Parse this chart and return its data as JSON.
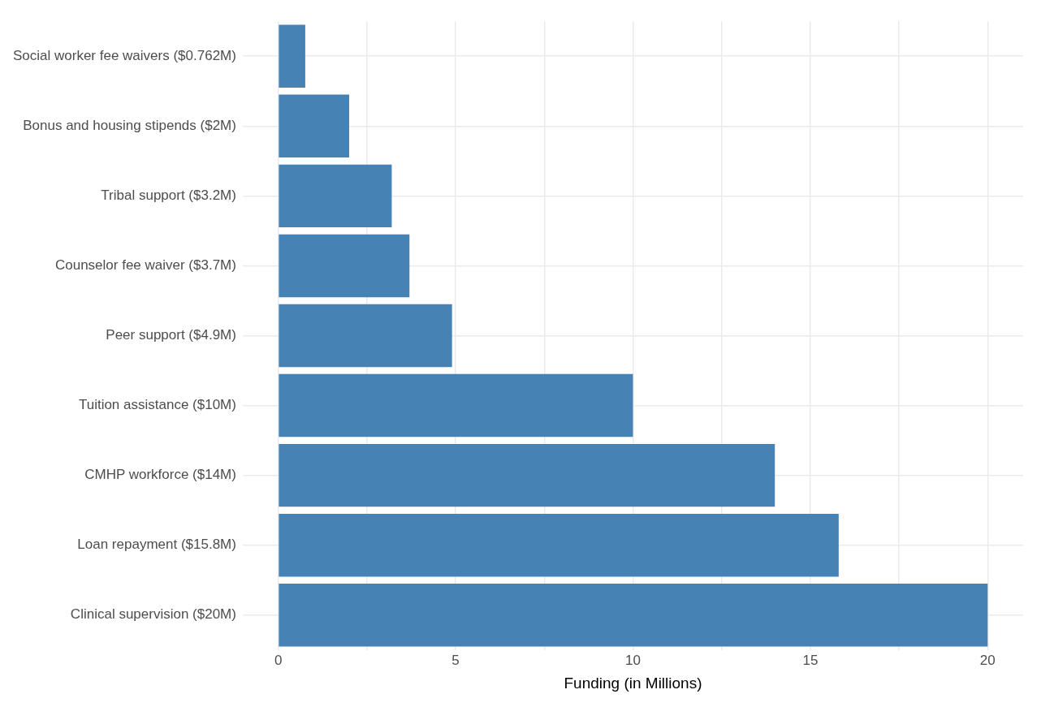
{
  "chart_data": {
    "type": "bar",
    "orientation": "horizontal",
    "xlabel": "Funding (in Millions)",
    "categories": [
      "Social worker fee waivers ($0.762M)",
      "Bonus and housing stipends ($2M)",
      "Tribal support ($3.2M)",
      "Counselor fee waiver ($3.7M)",
      "Peer support ($4.9M)",
      "Tuition assistance ($10M)",
      "CMHP workforce ($14M)",
      "Loan repayment ($15.8M)",
      "Clinical supervision ($20M)"
    ],
    "values": [
      0.762,
      2,
      3.2,
      3.7,
      4.9,
      10,
      14,
      15.8,
      20
    ],
    "color": "#4682b4",
    "xlim": [
      -1,
      21
    ],
    "xticks": [
      0,
      {
        "value": 2.5,
        "label": null
      },
      5,
      {
        "value": 7.5,
        "label": null
      },
      10,
      {
        "value": 12.5,
        "label": null
      },
      15,
      {
        "value": 17.5,
        "label": null
      },
      20
    ],
    "grid": true,
    "legend": false
  }
}
